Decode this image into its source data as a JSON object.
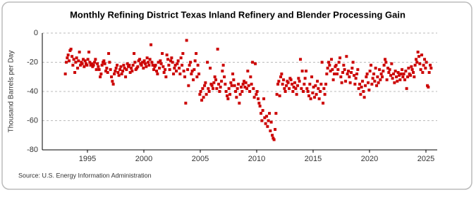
{
  "chart_data": {
    "type": "scatter",
    "title": "Monthly Refining District Texas Inland Refinery and Blender Processing Gain",
    "y_label": "Thousand Barrels per Day",
    "source": "Source: U.S. Energy Information Administration",
    "color": "#cc0000",
    "grid": true,
    "xlim": [
      1991,
      2026
    ],
    "xticks": [
      1995,
      2000,
      2005,
      2010,
      2015,
      2020,
      2025
    ],
    "ylim": [
      -80,
      0
    ],
    "yticks": [
      -80,
      -60,
      -40,
      -20,
      0
    ],
    "x": [
      1993.04,
      1993.13,
      1993.21,
      1993.29,
      1993.38,
      1993.46,
      1993.54,
      1993.63,
      1993.71,
      1993.79,
      1993.88,
      1993.96,
      1994.04,
      1994.13,
      1994.21,
      1994.29,
      1994.38,
      1994.46,
      1994.54,
      1994.63,
      1994.71,
      1994.79,
      1994.88,
      1994.96,
      1995.04,
      1995.13,
      1995.21,
      1995.29,
      1995.38,
      1995.46,
      1995.54,
      1995.63,
      1995.71,
      1995.79,
      1995.88,
      1995.96,
      1996.04,
      1996.13,
      1996.21,
      1996.29,
      1996.38,
      1996.46,
      1996.54,
      1996.63,
      1996.71,
      1996.79,
      1996.88,
      1996.96,
      1997.04,
      1997.13,
      1997.21,
      1997.29,
      1997.38,
      1997.46,
      1997.54,
      1997.63,
      1997.71,
      1997.79,
      1997.88,
      1997.96,
      1998.04,
      1998.13,
      1998.21,
      1998.29,
      1998.38,
      1998.46,
      1998.54,
      1998.63,
      1998.71,
      1998.79,
      1998.88,
      1998.96,
      1999.04,
      1999.13,
      1999.21,
      1999.29,
      1999.38,
      1999.46,
      1999.54,
      1999.63,
      1999.71,
      1999.79,
      1999.88,
      1999.96,
      2000.04,
      2000.13,
      2000.21,
      2000.29,
      2000.38,
      2000.46,
      2000.54,
      2000.63,
      2000.71,
      2000.79,
      2000.88,
      2000.96,
      2001.04,
      2001.13,
      2001.21,
      2001.29,
      2001.38,
      2001.46,
      2001.54,
      2001.63,
      2001.71,
      2001.79,
      2001.88,
      2001.96,
      2002.04,
      2002.13,
      2002.21,
      2002.29,
      2002.38,
      2002.46,
      2002.54,
      2002.63,
      2002.71,
      2002.79,
      2002.88,
      2002.96,
      2003.04,
      2003.13,
      2003.21,
      2003.29,
      2003.38,
      2003.46,
      2003.54,
      2003.63,
      2003.71,
      2003.79,
      2003.88,
      2003.96,
      2004.04,
      2004.13,
      2004.21,
      2004.29,
      2004.38,
      2004.46,
      2004.54,
      2004.63,
      2004.71,
      2004.79,
      2004.88,
      2004.96,
      2005.04,
      2005.13,
      2005.21,
      2005.29,
      2005.38,
      2005.46,
      2005.54,
      2005.63,
      2005.71,
      2005.79,
      2005.88,
      2005.96,
      2006.04,
      2006.13,
      2006.21,
      2006.29,
      2006.38,
      2006.46,
      2006.54,
      2006.63,
      2006.71,
      2006.79,
      2006.88,
      2006.96,
      2007.04,
      2007.13,
      2007.21,
      2007.29,
      2007.38,
      2007.46,
      2007.54,
      2007.63,
      2007.71,
      2007.79,
      2007.88,
      2007.96,
      2008.04,
      2008.13,
      2008.21,
      2008.29,
      2008.38,
      2008.46,
      2008.54,
      2008.63,
      2008.71,
      2008.79,
      2008.88,
      2008.96,
      2009.04,
      2009.13,
      2009.21,
      2009.29,
      2009.38,
      2009.46,
      2009.54,
      2009.63,
      2009.71,
      2009.79,
      2009.88,
      2009.96,
      2010.04,
      2010.13,
      2010.21,
      2010.29,
      2010.38,
      2010.46,
      2010.54,
      2010.63,
      2010.71,
      2010.79,
      2010.88,
      2010.96,
      2011.04,
      2011.13,
      2011.21,
      2011.29,
      2011.38,
      2011.46,
      2011.54,
      2011.63,
      2011.71,
      2011.79,
      2011.88,
      2011.96,
      2012.04,
      2012.13,
      2012.21,
      2012.29,
      2012.38,
      2012.46,
      2012.54,
      2012.63,
      2012.71,
      2012.79,
      2012.88,
      2012.96,
      2013.04,
      2013.13,
      2013.21,
      2013.29,
      2013.38,
      2013.46,
      2013.54,
      2013.63,
      2013.71,
      2013.79,
      2013.88,
      2013.96,
      2014.04,
      2014.13,
      2014.21,
      2014.29,
      2014.38,
      2014.46,
      2014.54,
      2014.63,
      2014.71,
      2014.79,
      2014.88,
      2014.96,
      2015.04,
      2015.13,
      2015.21,
      2015.29,
      2015.38,
      2015.46,
      2015.54,
      2015.63,
      2015.71,
      2015.79,
      2015.88,
      2015.96,
      2016.04,
      2016.13,
      2016.21,
      2016.29,
      2016.38,
      2016.46,
      2016.54,
      2016.63,
      2016.71,
      2016.79,
      2016.88,
      2016.96,
      2017.04,
      2017.13,
      2017.21,
      2017.29,
      2017.38,
      2017.46,
      2017.54,
      2017.63,
      2017.71,
      2017.79,
      2017.88,
      2017.96,
      2018.04,
      2018.13,
      2018.21,
      2018.29,
      2018.38,
      2018.46,
      2018.54,
      2018.63,
      2018.71,
      2018.79,
      2018.88,
      2018.96,
      2019.04,
      2019.13,
      2019.21,
      2019.29,
      2019.38,
      2019.46,
      2019.54,
      2019.63,
      2019.71,
      2019.79,
      2019.88,
      2019.96,
      2020.04,
      2020.13,
      2020.21,
      2020.29,
      2020.38,
      2020.46,
      2020.54,
      2020.63,
      2020.71,
      2020.79,
      2020.88,
      2020.96,
      2021.04,
      2021.13,
      2021.21,
      2021.29,
      2021.38,
      2021.46,
      2021.54,
      2021.63,
      2021.71,
      2021.79,
      2021.88,
      2021.96,
      2022.04,
      2022.13,
      2022.21,
      2022.29,
      2022.38,
      2022.46,
      2022.54,
      2022.63,
      2022.71,
      2022.79,
      2022.88,
      2022.96,
      2023.04,
      2023.13,
      2023.21,
      2023.29,
      2023.38,
      2023.46,
      2023.54,
      2023.63,
      2023.71,
      2023.79,
      2023.88,
      2023.96,
      2024.04,
      2024.13,
      2024.21,
      2024.29,
      2024.38,
      2024.46,
      2024.54,
      2024.63,
      2024.71,
      2024.79,
      2024.88,
      2024.96,
      2025.04,
      2025.13,
      2025.21,
      2025.29,
      2025.38,
      2025.46
    ],
    "values": [
      -28,
      -20,
      -17,
      -15,
      -19,
      -12,
      -11,
      -16,
      -22,
      -18,
      -27,
      -20,
      -17,
      -24,
      -19,
      -13,
      -22,
      -20,
      -21,
      -18,
      -23,
      -19,
      -21,
      -22,
      -18,
      -13,
      -20,
      -22,
      -21,
      -23,
      -22,
      -20,
      -18,
      -25,
      -21,
      -23,
      -25,
      -30,
      -28,
      -22,
      -20,
      -19,
      -21,
      -26,
      -24,
      -27,
      -14,
      -20,
      -25,
      -30,
      -33,
      -35,
      -28,
      -26,
      -24,
      -22,
      -27,
      -29,
      -25,
      -23,
      -28,
      -26,
      -22,
      -24,
      -30,
      -25,
      -21,
      -23,
      -22,
      -27,
      -24,
      -26,
      -22,
      -14,
      -20,
      -25,
      -24,
      -23,
      -19,
      -18,
      -21,
      -22,
      -20,
      -24,
      -19,
      -21,
      -23,
      -17,
      -20,
      -22,
      -18,
      -8,
      -20,
      -22,
      -25,
      -23,
      -22,
      -26,
      -28,
      -20,
      -24,
      -19,
      -21,
      -14,
      -23,
      -27,
      -25,
      -30,
      -15,
      -18,
      -22,
      -25,
      -19,
      -17,
      -20,
      -28,
      -24,
      -22,
      -26,
      -21,
      -19,
      -24,
      -28,
      -17,
      -22,
      -14,
      -26,
      -30,
      -48,
      -5,
      -25,
      -36,
      -22,
      -20,
      -28,
      -26,
      -32,
      -25,
      -19,
      -14,
      -30,
      -22,
      -28,
      -42,
      -40,
      -46,
      -38,
      -44,
      -36,
      -34,
      -42,
      -20,
      -38,
      -40,
      -24,
      -35,
      -36,
      -38,
      -34,
      -30,
      -32,
      -38,
      -11,
      -35,
      -40,
      -37,
      -33,
      -26,
      -22,
      -30,
      -35,
      -40,
      -43,
      -45,
      -38,
      -42,
      -34,
      -36,
      -28,
      -32,
      -36,
      -40,
      -44,
      -38,
      -35,
      -48,
      -42,
      -37,
      -40,
      -35,
      -33,
      -37,
      -34,
      -38,
      -26,
      -36,
      -40,
      -30,
      -35,
      -20,
      -38,
      -44,
      -21,
      -42,
      -40,
      -45,
      -48,
      -50,
      -55,
      -60,
      -53,
      -45,
      -58,
      -62,
      -57,
      -64,
      -60,
      -55,
      -67,
      -61,
      -70,
      -72,
      -73,
      -66,
      -55,
      -42,
      -35,
      -33,
      -43,
      -30,
      -28,
      -35,
      -32,
      -38,
      -40,
      -36,
      -33,
      -34,
      -38,
      -31,
      -32,
      -35,
      -40,
      -37,
      -34,
      -38,
      -42,
      -36,
      -31,
      -33,
      -18,
      -38,
      -26,
      -40,
      -35,
      -31,
      -26,
      -38,
      -40,
      -43,
      -35,
      -45,
      -30,
      -41,
      -37,
      -44,
      -36,
      -42,
      -33,
      -38,
      -45,
      -40,
      -35,
      -20,
      -48,
      -38,
      -42,
      -35,
      -28,
      -24,
      -20,
      -22,
      -26,
      -18,
      -25,
      -32,
      -28,
      -23,
      -22,
      -28,
      -25,
      -20,
      -17,
      -30,
      -34,
      -27,
      -22,
      -25,
      -33,
      -16,
      -28,
      -26,
      -30,
      -34,
      -27,
      -24,
      -20,
      -29,
      -35,
      -31,
      -28,
      -25,
      -38,
      -35,
      -42,
      -37,
      -33,
      -40,
      -44,
      -36,
      -30,
      -28,
      -34,
      -39,
      -26,
      -22,
      -35,
      -31,
      -28,
      -33,
      -24,
      -36,
      -30,
      -34,
      -25,
      -32,
      -28,
      -30,
      -26,
      -22,
      -18,
      -20,
      -32,
      -24,
      -27,
      -25,
      -29,
      -21,
      -31,
      -28,
      -34,
      -26,
      -30,
      -33,
      -27,
      -29,
      -32,
      -28,
      -25,
      -30,
      -28,
      -32,
      -26,
      -38,
      -30,
      -24,
      -28,
      -29,
      -23,
      -25,
      -27,
      -30,
      -22,
      -18,
      -20,
      -13,
      -16,
      -21,
      -25,
      -15,
      -27,
      -22,
      -18,
      -24,
      -20,
      -36,
      -37,
      -27,
      -22,
      -24
    ]
  }
}
